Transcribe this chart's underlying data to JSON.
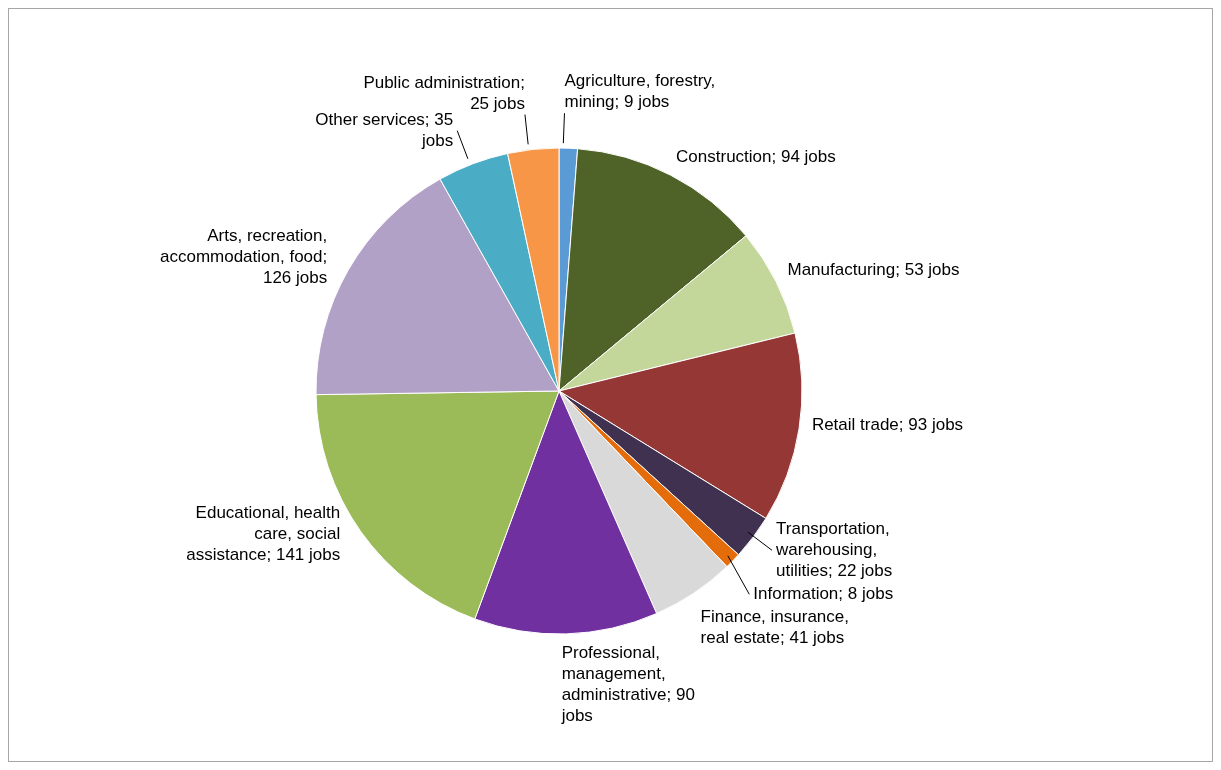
{
  "chart_data": {
    "type": "pie",
    "values": [
      9,
      94,
      53,
      93,
      22,
      8,
      41,
      90,
      141,
      126,
      35,
      25
    ],
    "colors": [
      "#5b9bd5",
      "#4f6228",
      "#c4d79b",
      "#953735",
      "#403151",
      "#e46c0a",
      "#d9d9d9",
      "#7030a0",
      "#9bbb59",
      "#b2a1c7",
      "#4bacc6",
      "#f79646"
    ],
    "value_labels": [
      "Agriculture, forestry, mining; 9 jobs",
      "Construction; 94 jobs",
      "Manufacturing; 53 jobs",
      "Retail trade; 93 jobs",
      "Transportation, warehousing, utilities; 22 jobs",
      "Information; 8 jobs",
      "Finance, insurance, real estate; 41 jobs",
      "Professional, management, administrative; 90 jobs",
      "Educational, health care, social assistance; 141 jobs",
      "Arts, recreation, accommodation, food; 126 jobs",
      "Other services; 35 jobs",
      "Public administration; 25 jobs"
    ]
  }
}
